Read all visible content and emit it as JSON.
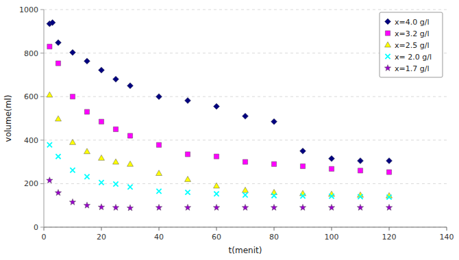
{
  "chart_data": {
    "type": "scatter",
    "xlabel": "t(menit)",
    "ylabel": "volume(ml)",
    "xlim": [
      0,
      140
    ],
    "ylim": [
      0,
      1000
    ],
    "xticks": [
      0,
      20,
      40,
      60,
      80,
      100,
      120,
      140
    ],
    "yticks": [
      0,
      200,
      400,
      600,
      800,
      1000
    ],
    "grid": true,
    "legend": "upper right",
    "series": [
      {
        "name": "x=4.0 g/l",
        "color": "#000080",
        "marker": "diamond",
        "x": [
          2,
          3,
          5,
          10,
          15,
          20,
          25,
          30,
          40,
          50,
          60,
          70,
          80,
          90,
          100,
          110,
          120
        ],
        "values": [
          935,
          940,
          848,
          803,
          763,
          722,
          680,
          650,
          600,
          582,
          555,
          510,
          485,
          350,
          315,
          305,
          305
        ]
      },
      {
        "name": "x=3.2 g/l",
        "color": "#FF00FF",
        "marker": "square",
        "x": [
          2,
          5,
          10,
          15,
          20,
          25,
          30,
          40,
          50,
          60,
          70,
          80,
          90,
          100,
          110,
          120
        ],
        "values": [
          830,
          753,
          600,
          530,
          485,
          450,
          420,
          378,
          335,
          325,
          300,
          290,
          280,
          268,
          260,
          253
        ]
      },
      {
        "name": "x=2.5 g/l",
        "color": "#FFFF00",
        "marker": "triangle",
        "x": [
          2,
          5,
          10,
          15,
          20,
          25,
          30,
          40,
          50,
          60,
          70,
          80,
          90,
          100,
          110,
          120
        ],
        "values": [
          608,
          498,
          390,
          348,
          318,
          300,
          290,
          248,
          220,
          190,
          170,
          160,
          155,
          152,
          148,
          145
        ]
      },
      {
        "name": "x= 2.0 g/l",
        "color": "#00FFFF",
        "marker": "cross",
        "x": [
          2,
          5,
          10,
          15,
          20,
          25,
          30,
          40,
          50,
          60,
          70,
          80,
          90,
          100,
          110,
          120
        ],
        "values": [
          378,
          325,
          262,
          232,
          205,
          198,
          185,
          165,
          160,
          153,
          148,
          145,
          143,
          142,
          140,
          138
        ]
      },
      {
        "name": "x=1.7 g/l",
        "color": "#9900CC",
        "marker": "star",
        "x": [
          2,
          5,
          10,
          15,
          20,
          25,
          30,
          40,
          50,
          60,
          70,
          80,
          90,
          100,
          110,
          120
        ],
        "values": [
          215,
          158,
          115,
          100,
          92,
          90,
          88,
          90,
          90,
          90,
          90,
          90,
          90,
          90,
          90,
          90
        ]
      }
    ]
  }
}
